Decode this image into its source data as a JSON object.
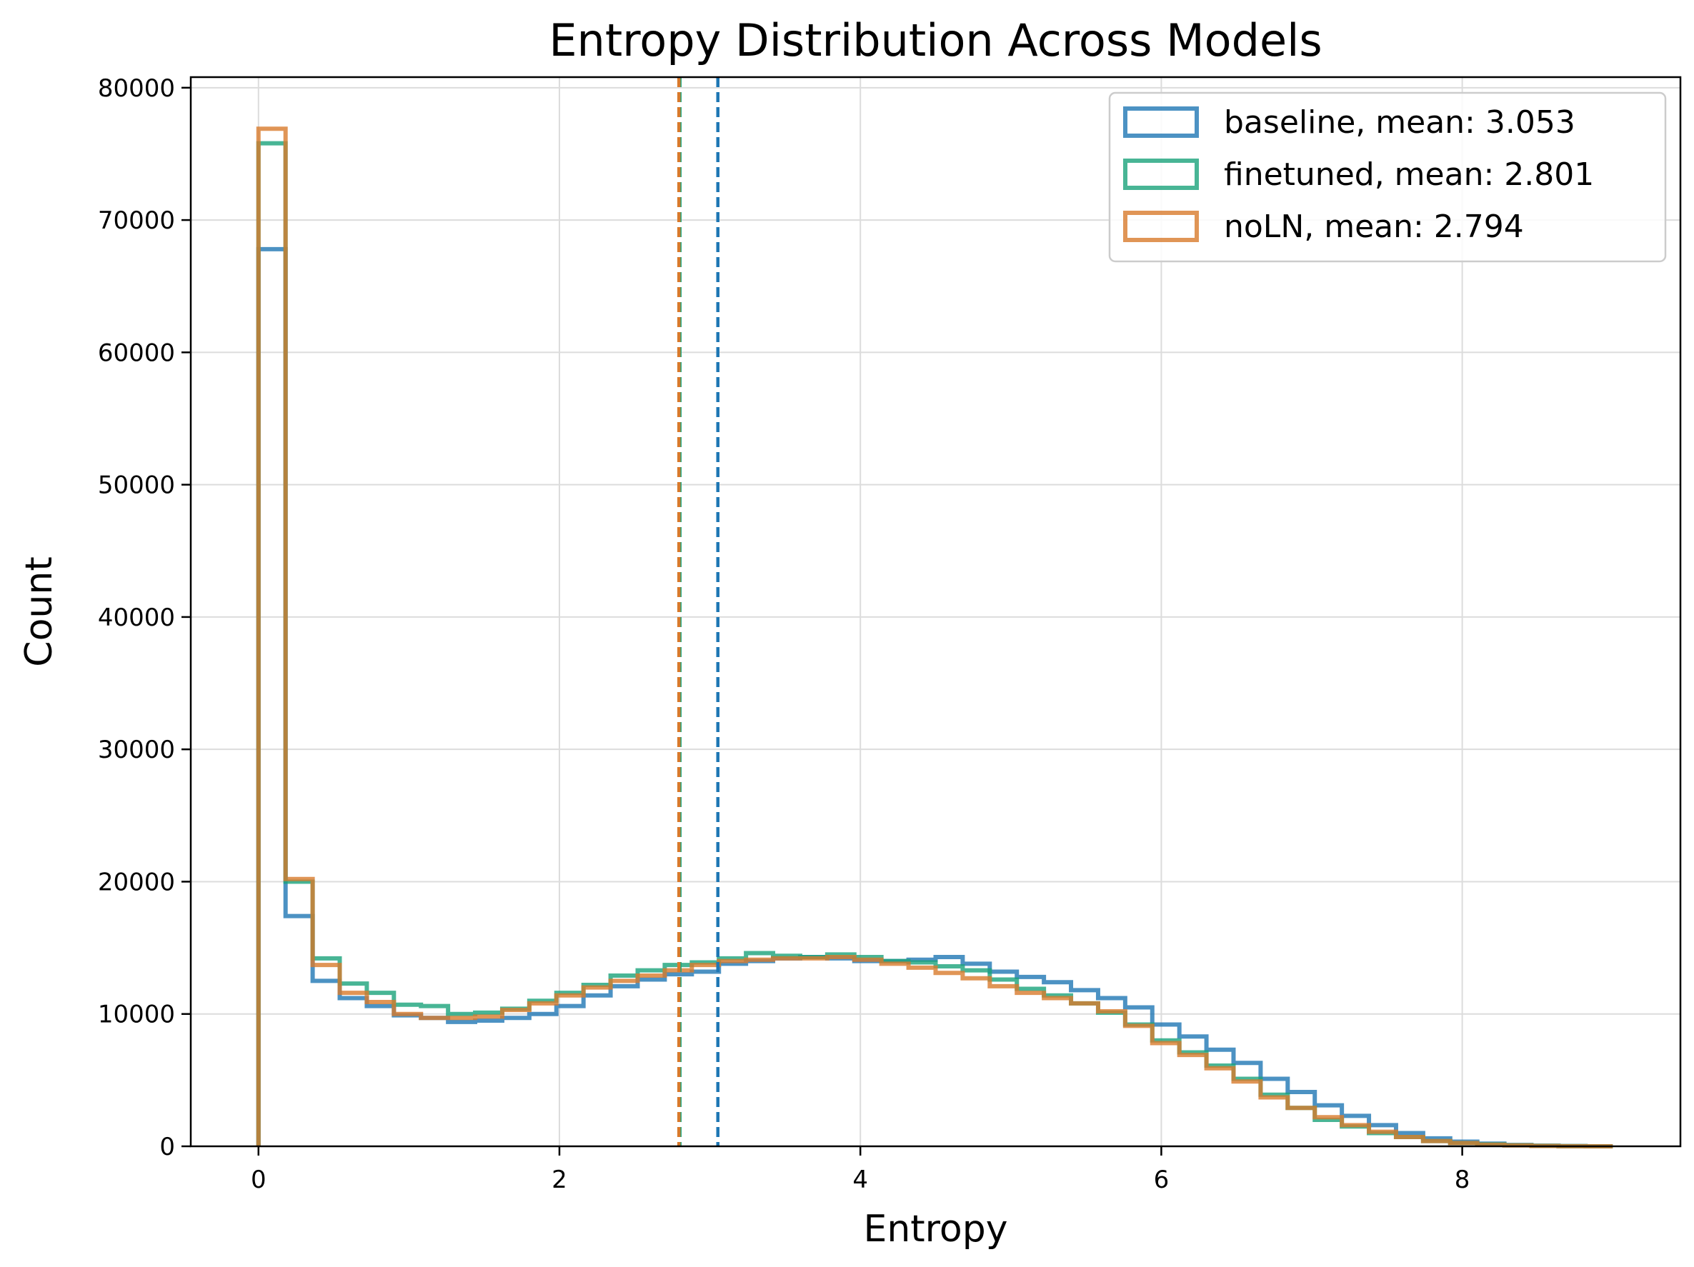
{
  "chart_data": {
    "type": "histogram",
    "title": "Entropy Distribution Across Models",
    "xlabel": "Entropy",
    "ylabel": "Count",
    "xlim": [
      -0.45,
      9.45
    ],
    "ylim": [
      0,
      80800
    ],
    "xticks": [
      0,
      2,
      4,
      6,
      8
    ],
    "yticks": [
      0,
      10000,
      20000,
      30000,
      40000,
      50000,
      60000,
      70000,
      80000
    ],
    "grid": true,
    "legend_position": "top-right",
    "bin_edges": [
      0,
      0.18,
      0.36,
      0.54,
      0.72,
      0.9,
      1.08,
      1.26,
      1.44,
      1.62,
      1.8,
      1.98,
      2.16,
      2.34,
      2.52,
      2.7,
      2.88,
      3.06,
      3.24,
      3.42,
      3.6,
      3.78,
      3.96,
      4.14,
      4.32,
      4.5,
      4.68,
      4.86,
      5.04,
      5.22,
      5.4,
      5.58,
      5.76,
      5.94,
      6.12,
      6.3,
      6.48,
      6.66,
      6.84,
      7.02,
      7.2,
      7.38,
      7.56,
      7.74,
      7.92,
      8.1,
      8.28,
      8.46,
      8.64,
      8.82,
      9.0
    ],
    "series": [
      {
        "name": "baseline, mean: 3.053",
        "color": "#1f77b4",
        "mean": 3.053,
        "counts": [
          67800,
          17400,
          12500,
          11200,
          10600,
          9900,
          9700,
          9400,
          9500,
          9700,
          10000,
          10600,
          11400,
          12100,
          12600,
          13000,
          13200,
          13800,
          14000,
          14200,
          14300,
          14200,
          14000,
          14000,
          14100,
          14300,
          13800,
          13200,
          12800,
          12400,
          11800,
          11200,
          10500,
          9200,
          8300,
          7300,
          6300,
          5100,
          4100,
          3100,
          2300,
          1600,
          1000,
          600,
          350,
          200,
          100,
          50,
          20,
          0
        ]
      },
      {
        "name": "finetuned, mean: 2.801",
        "color": "#1aa37a",
        "mean": 2.801,
        "counts": [
          75800,
          20000,
          14200,
          12300,
          11600,
          10700,
          10600,
          10000,
          10100,
          10400,
          11000,
          11600,
          12200,
          12900,
          13300,
          13700,
          13900,
          14200,
          14600,
          14400,
          14300,
          14500,
          14300,
          14000,
          13900,
          13600,
          13300,
          12600,
          11900,
          11400,
          10800,
          10100,
          9200,
          8000,
          7100,
          6100,
          5100,
          3900,
          2900,
          2000,
          1500,
          1000,
          700,
          400,
          250,
          150,
          80,
          40,
          15,
          0
        ]
      },
      {
        "name": "noLN, mean: 2.794",
        "color": "#d87a2c",
        "mean": 2.794,
        "counts": [
          76900,
          20200,
          13700,
          11600,
          10900,
          10000,
          9700,
          9700,
          9800,
          10300,
          10800,
          11400,
          12000,
          12500,
          12900,
          13300,
          13700,
          14000,
          14100,
          14200,
          14200,
          14300,
          14100,
          13800,
          13500,
          13100,
          12700,
          12100,
          11600,
          11200,
          10800,
          10200,
          9100,
          7800,
          6900,
          5900,
          4900,
          3700,
          2900,
          2200,
          1600,
          1100,
          700,
          400,
          250,
          120,
          70,
          30,
          10,
          0
        ]
      }
    ]
  }
}
